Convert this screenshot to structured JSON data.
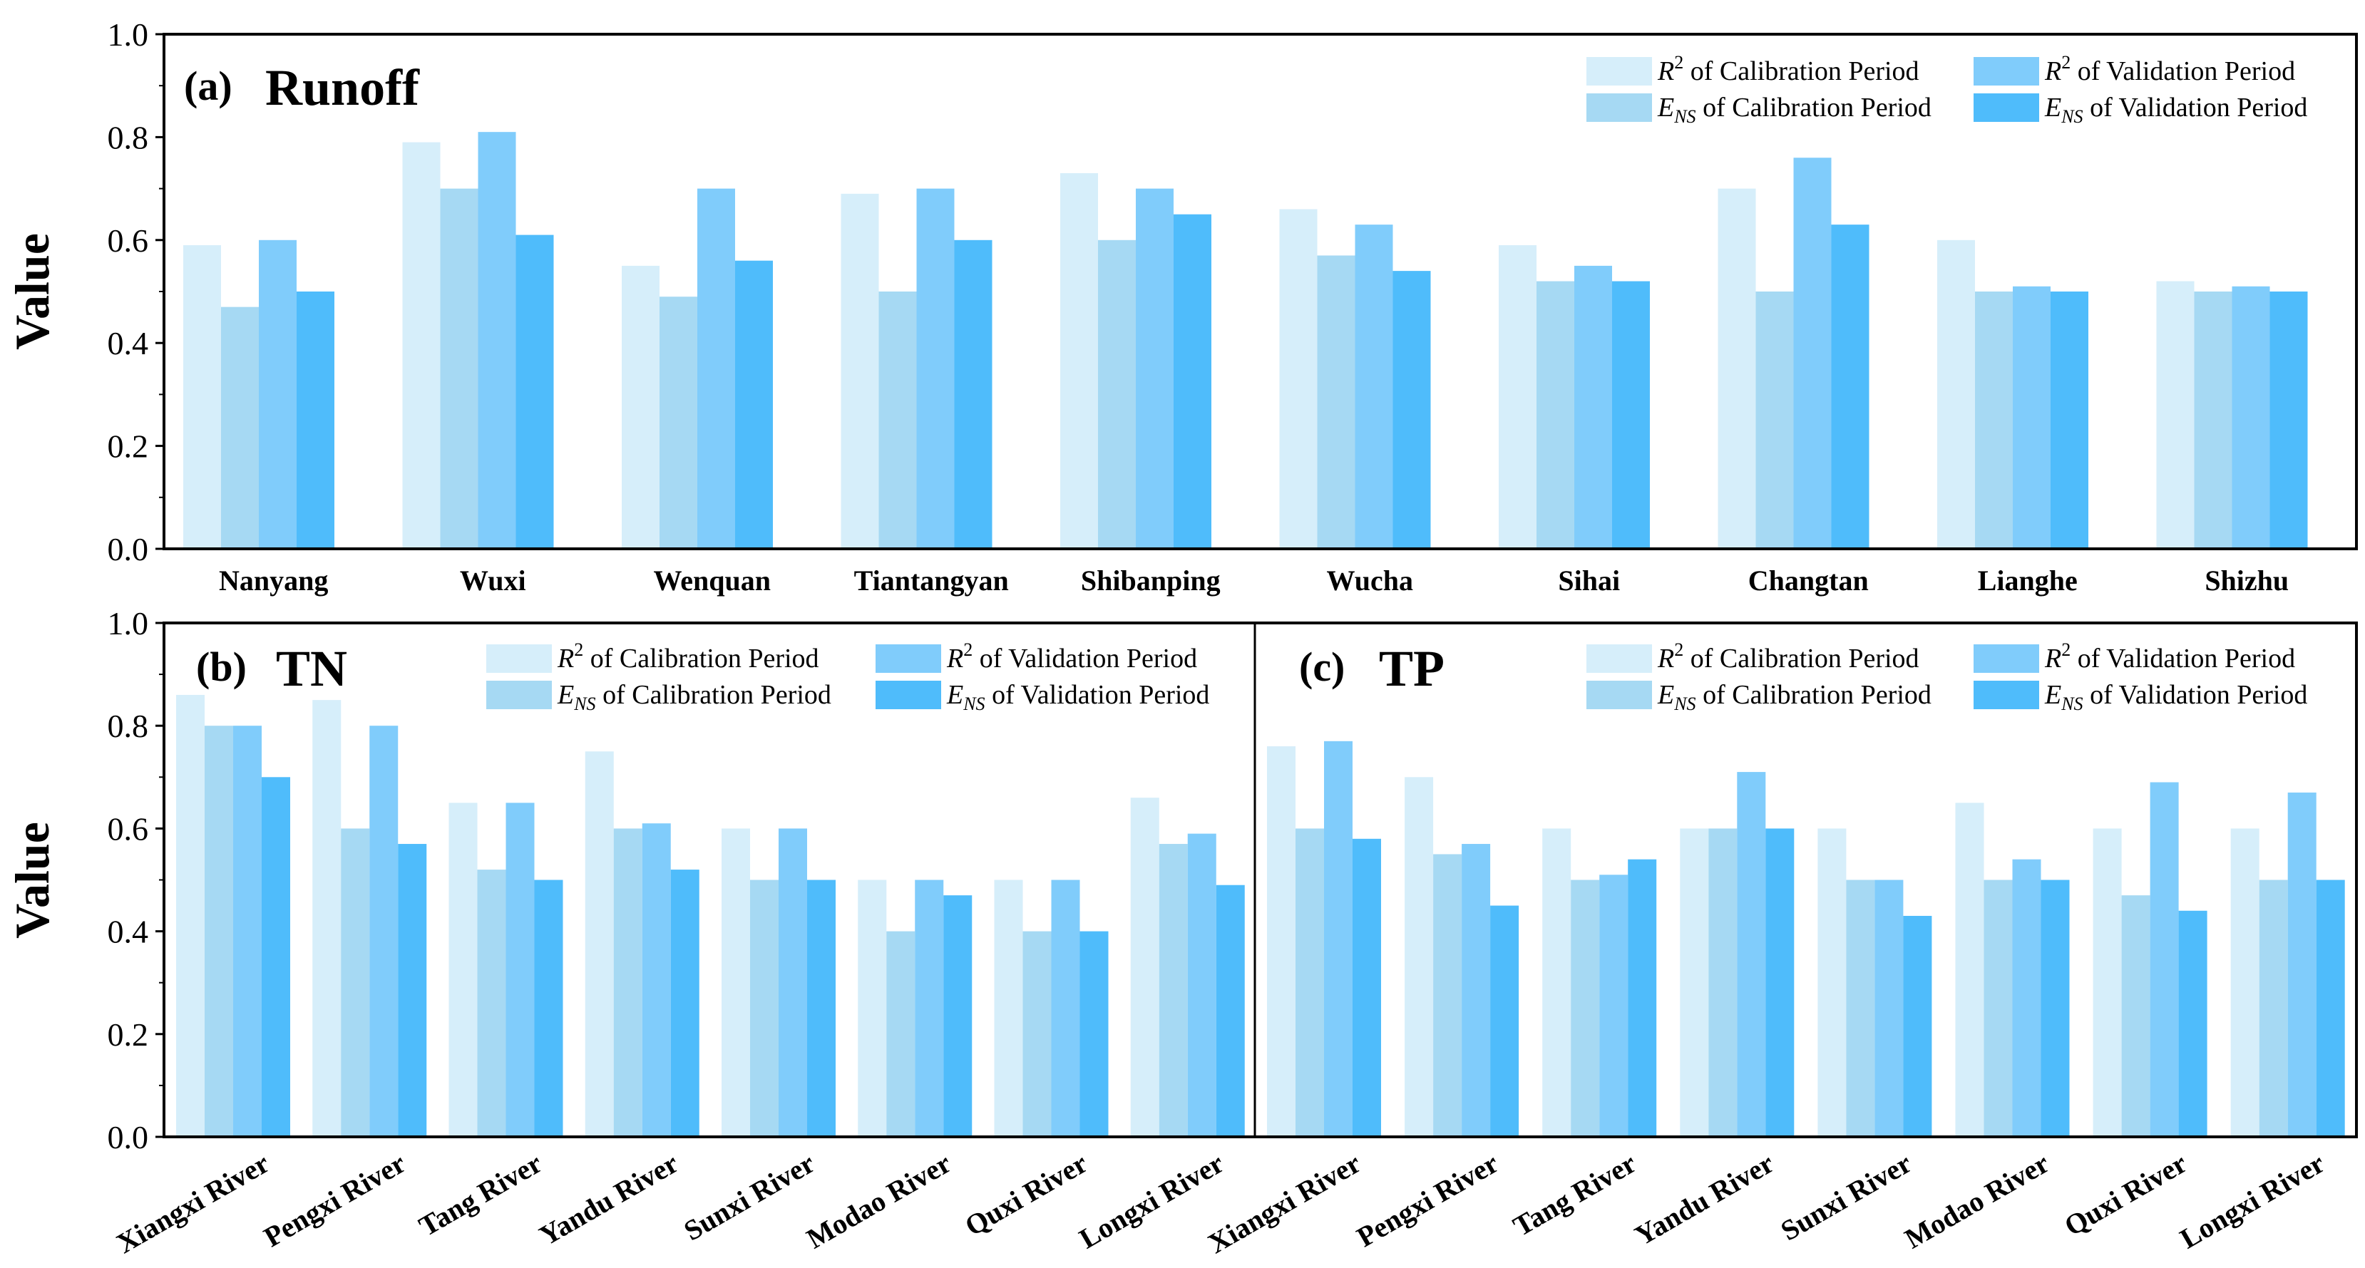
{
  "colors": {
    "r2_cal": "#d6eefa",
    "ens_cal": "#a6d9f3",
    "r2_val": "#80ccfb",
    "ens_val": "#4fbcfb"
  },
  "chart_data": [
    {
      "id": "runoff",
      "type": "bar",
      "title_tag": "(a)",
      "title_word": "Runoff",
      "ylabel": "Value",
      "ylim": [
        0,
        1.0
      ],
      "yticks": [
        "0.0",
        "0.2",
        "0.4",
        "0.6",
        "0.8",
        "1.0"
      ],
      "legend_position": "top-right",
      "categories": [
        "Nanyang",
        "Wuxi",
        "Wenquan",
        "Tiantangyan",
        "Shibanping",
        "Wucha",
        "Sihai",
        "Changtan",
        "Lianghe",
        "Shizhu"
      ],
      "series": [
        {
          "name": "R² of Calibration Period",
          "values": [
            0.59,
            0.79,
            0.55,
            0.69,
            0.73,
            0.66,
            0.59,
            0.7,
            0.6,
            0.52
          ]
        },
        {
          "name": "ENS of Calibration Period",
          "values": [
            0.47,
            0.7,
            0.49,
            0.5,
            0.6,
            0.57,
            0.52,
            0.5,
            0.5,
            0.5
          ]
        },
        {
          "name": "R² of Validation Period",
          "values": [
            0.6,
            0.81,
            0.7,
            0.7,
            0.7,
            0.63,
            0.55,
            0.76,
            0.51,
            0.51
          ]
        },
        {
          "name": "ENS of Validation Period",
          "values": [
            0.5,
            0.61,
            0.56,
            0.6,
            0.65,
            0.54,
            0.52,
            0.63,
            0.5,
            0.5
          ]
        }
      ]
    },
    {
      "id": "tn",
      "type": "bar",
      "title_tag": "(b)",
      "title_word": "TN",
      "ylabel": "Value",
      "ylim": [
        0,
        1.0
      ],
      "yticks": [
        "0.0",
        "0.2",
        "0.4",
        "0.6",
        "0.8",
        "1.0"
      ],
      "legend_position": "top-right",
      "categories": [
        "Xiangxi River",
        "Pengxi River",
        "Tang River",
        "Yandu River",
        "Sunxi River",
        "Modao River",
        "Quxi River",
        "Longxi River"
      ],
      "series": [
        {
          "name": "R² of Calibration Period",
          "values": [
            0.86,
            0.85,
            0.65,
            0.75,
            0.6,
            0.5,
            0.5,
            0.66
          ]
        },
        {
          "name": "ENS of Calibration Period",
          "values": [
            0.8,
            0.6,
            0.52,
            0.6,
            0.5,
            0.4,
            0.4,
            0.57
          ]
        },
        {
          "name": "R² of Validation Period",
          "values": [
            0.8,
            0.8,
            0.65,
            0.61,
            0.6,
            0.5,
            0.5,
            0.59
          ]
        },
        {
          "name": "ENS of Validation Period",
          "values": [
            0.7,
            0.57,
            0.5,
            0.52,
            0.5,
            0.47,
            0.4,
            0.49
          ]
        }
      ]
    },
    {
      "id": "tp",
      "type": "bar",
      "title_tag": "(c)",
      "title_word": "TP",
      "ylim": [
        0,
        1.0
      ],
      "legend_position": "top-right",
      "categories": [
        "Xiangxi River",
        "Pengxi River",
        "Tang River",
        "Yandu River",
        "Sunxi River",
        "Modao River",
        "Quxi River",
        "Longxi River"
      ],
      "series": [
        {
          "name": "R² of Calibration Period",
          "values": [
            0.76,
            0.7,
            0.6,
            0.6,
            0.6,
            0.65,
            0.6,
            0.6
          ]
        },
        {
          "name": "ENS of Calibration Period",
          "values": [
            0.6,
            0.55,
            0.5,
            0.6,
            0.5,
            0.5,
            0.47,
            0.5
          ]
        },
        {
          "name": "R² of Validation Period",
          "values": [
            0.77,
            0.57,
            0.51,
            0.71,
            0.5,
            0.54,
            0.69,
            0.67
          ]
        },
        {
          "name": "ENS of Validation Period",
          "values": [
            0.58,
            0.45,
            0.54,
            0.6,
            0.43,
            0.5,
            0.44,
            0.5
          ]
        }
      ]
    }
  ]
}
